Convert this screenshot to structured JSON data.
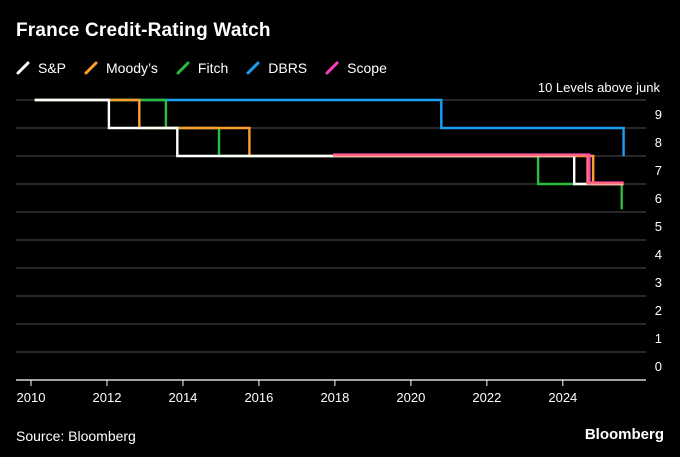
{
  "header": {
    "title": "France Credit-Rating Watch"
  },
  "footer": {
    "source": "Source: Bloomberg",
    "brand": "Bloomberg"
  },
  "chart_data": {
    "type": "line",
    "title": "France Credit-Rating Watch",
    "ylabel": "10 Levels above junk",
    "ylim": [
      0,
      10
    ],
    "xlim": [
      2010,
      2025.9
    ],
    "x_ticks": [
      2010,
      2012,
      2014,
      2016,
      2018,
      2020,
      2022,
      2024
    ],
    "y_ticks": [
      0,
      1,
      2,
      3,
      4,
      5,
      6,
      7,
      8,
      9
    ],
    "grid": true,
    "legend_position": "top-left",
    "series": [
      {
        "name": "S&P",
        "color": "#ffffff",
        "points": [
          [
            2010.1,
            10
          ],
          [
            2012.05,
            10
          ],
          [
            2012.05,
            9
          ],
          [
            2013.85,
            9
          ],
          [
            2013.85,
            8
          ],
          [
            2024.3,
            8
          ],
          [
            2024.3,
            7
          ],
          [
            2025.6,
            7
          ]
        ]
      },
      {
        "name": "Moody’s",
        "color": "#ff9d2e",
        "points": [
          [
            2010.1,
            10
          ],
          [
            2012.85,
            10
          ],
          [
            2012.85,
            9
          ],
          [
            2015.75,
            9
          ],
          [
            2015.75,
            8
          ],
          [
            2024.8,
            8
          ],
          [
            2024.8,
            7
          ],
          [
            2025.6,
            7
          ]
        ]
      },
      {
        "name": "Fitch",
        "color": "#2bbd3c",
        "points": [
          [
            2010.1,
            10
          ],
          [
            2013.55,
            10
          ],
          [
            2013.55,
            9
          ],
          [
            2014.95,
            9
          ],
          [
            2014.95,
            8
          ],
          [
            2023.35,
            8
          ],
          [
            2023.35,
            7
          ],
          [
            2025.55,
            7
          ],
          [
            2025.55,
            6.1
          ]
        ]
      },
      {
        "name": "DBRS",
        "color": "#1a9ff2",
        "points": [
          [
            2010.1,
            10
          ],
          [
            2020.8,
            10
          ],
          [
            2020.8,
            9
          ],
          [
            2025.6,
            9
          ],
          [
            2025.6,
            8
          ]
        ]
      },
      {
        "name": "Scope",
        "color": "#ff3ec8",
        "points": [
          [
            2017.95,
            8.05
          ],
          [
            2024.7,
            8.05
          ],
          [
            2024.7,
            7.05
          ],
          [
            2025.6,
            7.05
          ]
        ]
      }
    ],
    "extra_series": [
      {
        "name": "",
        "color": "#ff6f6f",
        "points": [
          [
            2017.95,
            8.02
          ],
          [
            2024.65,
            8.02
          ],
          [
            2024.65,
            7.02
          ],
          [
            2025.6,
            7.02
          ]
        ]
      }
    ]
  }
}
